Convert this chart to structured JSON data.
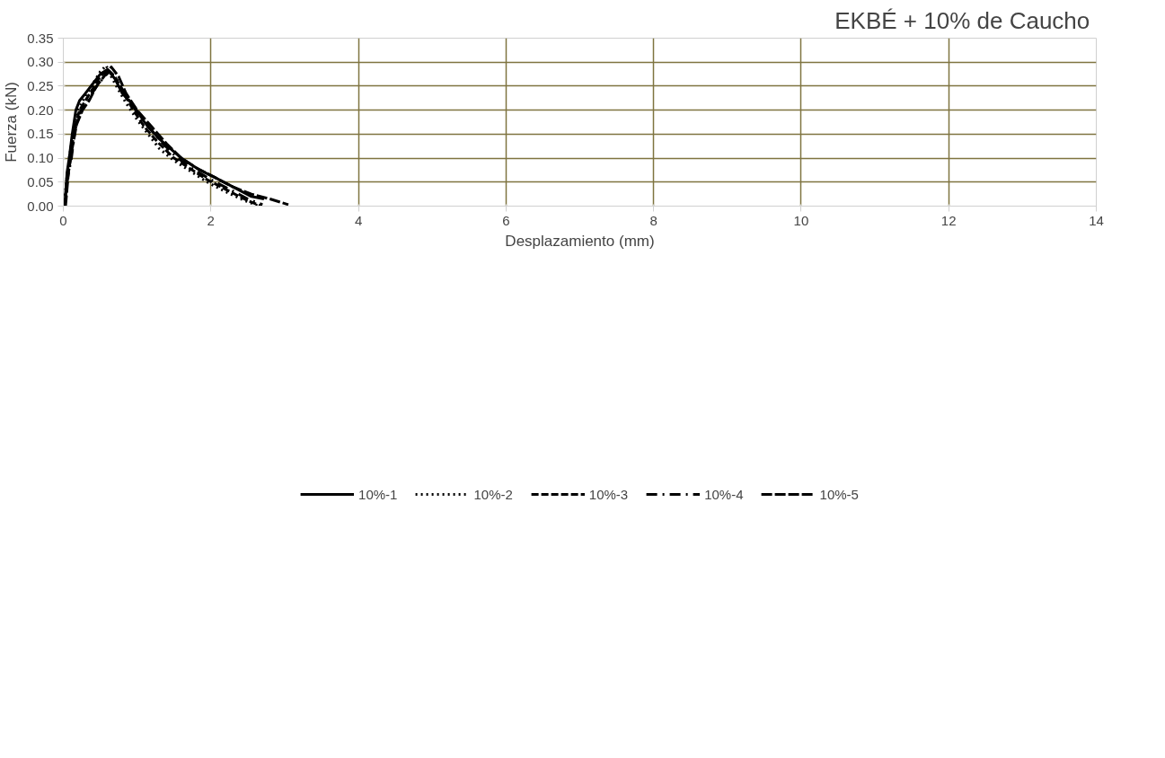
{
  "chart_data": {
    "type": "line",
    "title": "EKBÉ + 10%  de Caucho",
    "xlabel": "Desplazamiento (mm)",
    "ylabel": "Fuerza (kN)",
    "xlim": [
      0,
      14
    ],
    "xticks": [
      0,
      2,
      4,
      6,
      8,
      10,
      12,
      14
    ],
    "ylim": [
      0,
      0.35
    ],
    "yticks": [
      {
        "value": 0,
        "label": "0.00"
      },
      {
        "value": 0.05,
        "label": "0.05"
      },
      {
        "value": 0.1,
        "label": "0.10"
      },
      {
        "value": 0.15,
        "label": "0.15"
      },
      {
        "value": 0.2,
        "label": "0.20"
      },
      {
        "value": 0.25,
        "label": "0.25"
      },
      {
        "value": 0.3,
        "label": "0.30"
      },
      {
        "value": 0.35,
        "label": "0.35"
      }
    ],
    "grid": true,
    "legend": "bottom",
    "marker": "none",
    "series": [
      {
        "name": "10%-1",
        "color": "#000000",
        "line_style": "solid",
        "x": [
          0.02,
          0.05,
          0.08,
          0.12,
          0.17,
          0.22,
          0.3,
          0.4,
          0.5,
          0.6,
          0.7,
          0.8,
          0.95,
          1.1,
          1.3,
          1.45,
          1.6,
          1.85,
          2.05,
          2.3,
          2.55,
          2.72
        ],
        "values": [
          0.0,
          0.07,
          0.1,
          0.15,
          0.2,
          0.22,
          0.235,
          0.255,
          0.275,
          0.285,
          0.265,
          0.235,
          0.21,
          0.175,
          0.14,
          0.12,
          0.1,
          0.075,
          0.06,
          0.04,
          0.02,
          0.015
        ]
      },
      {
        "name": "10%-2",
        "color": "#000000",
        "line_style": "dotted",
        "x": [
          0.01,
          0.04,
          0.08,
          0.13,
          0.2,
          0.3,
          0.4,
          0.5,
          0.58,
          0.65,
          0.72,
          0.85,
          1.0,
          1.15,
          1.3,
          1.5,
          1.7,
          1.95,
          2.2,
          2.45,
          2.65
        ],
        "values": [
          0.0,
          0.05,
          0.1,
          0.15,
          0.2,
          0.23,
          0.255,
          0.28,
          0.293,
          0.27,
          0.25,
          0.215,
          0.18,
          0.15,
          0.12,
          0.095,
          0.075,
          0.05,
          0.03,
          0.012,
          0.0
        ]
      },
      {
        "name": "10%-3",
        "color": "#000000",
        "line_style": "dashed",
        "x": [
          0.02,
          0.05,
          0.1,
          0.15,
          0.22,
          0.3,
          0.4,
          0.5,
          0.6,
          0.7,
          0.8,
          0.95,
          1.1,
          1.3,
          1.5,
          1.7,
          1.95,
          2.2,
          2.45,
          2.68
        ],
        "values": [
          0.0,
          0.06,
          0.1,
          0.16,
          0.2,
          0.22,
          0.245,
          0.27,
          0.285,
          0.27,
          0.24,
          0.2,
          0.165,
          0.13,
          0.1,
          0.08,
          0.055,
          0.035,
          0.015,
          0.0
        ]
      },
      {
        "name": "10%-4",
        "color": "#000000",
        "line_style": "dashdot",
        "x": [
          0.02,
          0.06,
          0.11,
          0.16,
          0.24,
          0.33,
          0.43,
          0.53,
          0.62,
          0.72,
          0.83,
          0.98,
          1.15,
          1.35,
          1.55,
          1.75,
          2.0,
          2.25,
          2.5,
          2.7
        ],
        "values": [
          0.0,
          0.06,
          0.1,
          0.16,
          0.2,
          0.22,
          0.245,
          0.265,
          0.28,
          0.265,
          0.235,
          0.2,
          0.165,
          0.13,
          0.1,
          0.078,
          0.055,
          0.035,
          0.015,
          0.003
        ]
      },
      {
        "name": "10%-5",
        "color": "#000000",
        "line_style": "longdash",
        "x": [
          0.03,
          0.07,
          0.12,
          0.18,
          0.26,
          0.35,
          0.45,
          0.55,
          0.65,
          0.75,
          0.85,
          1.0,
          1.2,
          1.4,
          1.6,
          1.8,
          2.05,
          2.3,
          2.55,
          2.8,
          3.05
        ],
        "values": [
          0.0,
          0.07,
          0.12,
          0.17,
          0.2,
          0.22,
          0.25,
          0.27,
          0.29,
          0.27,
          0.235,
          0.2,
          0.165,
          0.13,
          0.1,
          0.08,
          0.06,
          0.04,
          0.025,
          0.015,
          0.003
        ]
      }
    ]
  }
}
